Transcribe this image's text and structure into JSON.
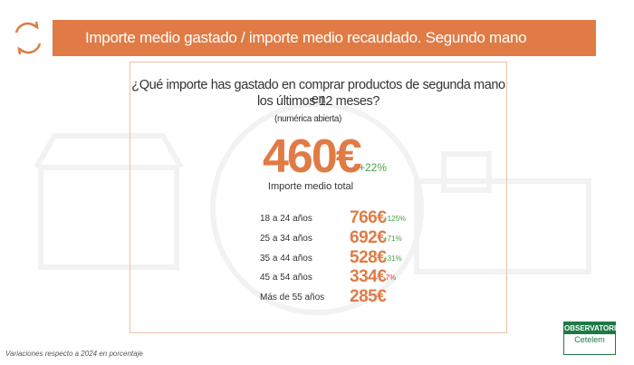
{
  "header": {
    "title": "Importe medio gastado / importe medio recaudado. Segundo mano"
  },
  "question": {
    "lines": [
      "¿Qué importe has gastado en comprar productos de segunda mano en",
      "los últimos 12 meses?"
    ],
    "note": "(numérica abierta)"
  },
  "total": {
    "amount": "460€",
    "change": "+22%",
    "label": "Importe medio total"
  },
  "rows": [
    {
      "label": "18 a 24 años",
      "amount": "766€",
      "change": "+125%"
    },
    {
      "label": "25 a 34 años",
      "amount": "692€",
      "change": "+71%"
    },
    {
      "label": "35 a 44 años",
      "amount": "528€",
      "change": "+31%"
    },
    {
      "label": "45 a 54 años",
      "amount": "334€",
      "change": "-7%"
    },
    {
      "label": "Más de 55 años",
      "amount": "285€"
    }
  ],
  "footer": {
    "note": "Variaciones respecto a 2024 en porcentaje"
  },
  "logo": {
    "name": "OBSERVATORIO",
    "brand": "Cetelem"
  }
}
